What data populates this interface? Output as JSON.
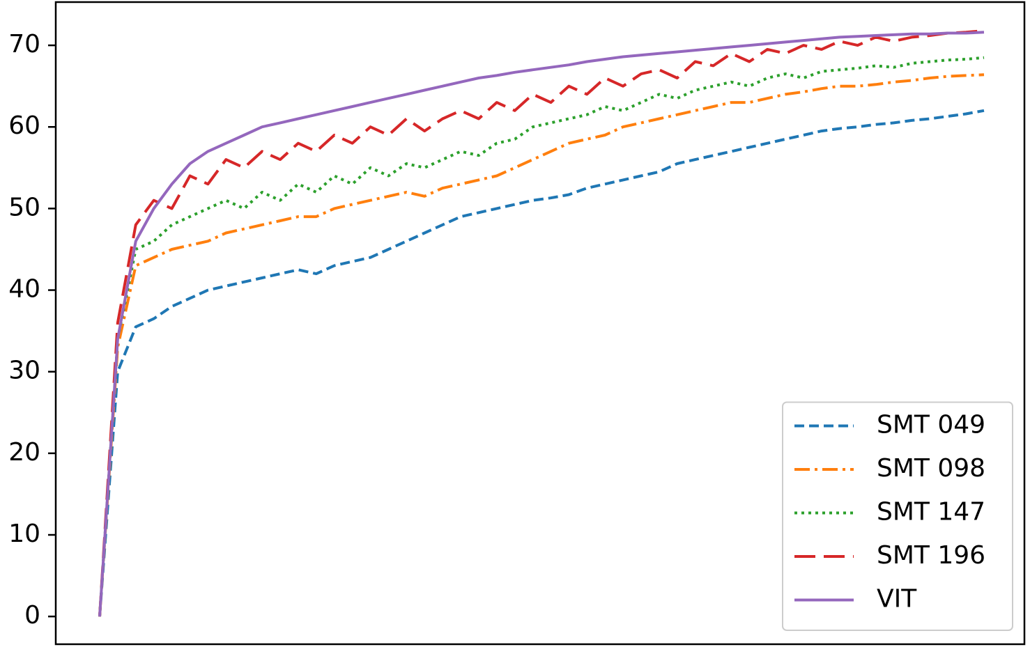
{
  "chart_data": {
    "type": "line",
    "ylim": [
      -3.4,
      75.3
    ],
    "yticks": [
      0,
      10,
      20,
      30,
      40,
      50,
      60,
      70
    ],
    "legend": "lower right",
    "series": [
      {
        "name": "SMT 049",
        "color": "#1f77b4",
        "linestyle": "dashed",
        "values": [
          0,
          30,
          35.5,
          36.5,
          38,
          39,
          40,
          40.5,
          41,
          41.5,
          42,
          42.5,
          42,
          43,
          43.5,
          44,
          45,
          46,
          47,
          48,
          49,
          49.5,
          50,
          50.5,
          51,
          51.3,
          51.7,
          52.5,
          53,
          53.5,
          54,
          54.5,
          55.5,
          56,
          56.5,
          57,
          57.5,
          58,
          58.5,
          59,
          59.5,
          59.8,
          60,
          60.3,
          60.5,
          60.8,
          61,
          61.3,
          61.6,
          62
        ]
      },
      {
        "name": "SMT 098",
        "color": "#ff7f0e",
        "linestyle": "dashdot",
        "values": [
          0,
          33,
          43,
          44,
          45,
          45.5,
          46,
          47,
          47.5,
          48,
          48.5,
          49,
          49,
          50,
          50.5,
          51,
          51.5,
          52,
          51.5,
          52.5,
          53,
          53.5,
          54,
          55,
          56,
          57,
          58,
          58.5,
          59,
          60,
          60.5,
          61,
          61.5,
          62,
          62.5,
          63,
          63,
          63.5,
          64,
          64.3,
          64.7,
          65,
          65,
          65.2,
          65.5,
          65.7,
          66,
          66.2,
          66.3,
          66.4
        ]
      },
      {
        "name": "SMT 147",
        "color": "#2ca02c",
        "linestyle": "dotted",
        "values": [
          0,
          34,
          45,
          46,
          48,
          49,
          50,
          51,
          50,
          52,
          51,
          53,
          52,
          54,
          53,
          55,
          54,
          55.5,
          55,
          56,
          57,
          56.5,
          58,
          58.5,
          60,
          60.5,
          61,
          61.5,
          62.5,
          62,
          63,
          64,
          63.5,
          64.5,
          65,
          65.5,
          65,
          66,
          66.5,
          66,
          66.8,
          67,
          67.2,
          67.5,
          67.3,
          67.8,
          68,
          68.2,
          68.3,
          68.5
        ]
      },
      {
        "name": "SMT 196",
        "color": "#d62728",
        "linestyle": "longdash",
        "values": [
          0,
          36,
          48,
          51,
          50,
          54,
          53,
          56,
          55,
          57,
          56,
          58,
          57,
          59,
          58,
          60,
          59,
          61,
          59.5,
          61,
          62,
          61,
          63,
          62,
          64,
          63,
          65,
          64,
          66,
          65,
          66.5,
          67,
          66,
          68,
          67.5,
          69,
          68,
          69.5,
          69,
          70,
          69.5,
          70.5,
          70,
          71,
          70.5,
          71,
          71.2,
          71.5,
          71.6,
          71.8
        ]
      },
      {
        "name": "VIT",
        "color": "#9467bd",
        "linestyle": "solid",
        "values": [
          0,
          34,
          46,
          50,
          53,
          55.5,
          57,
          58,
          59,
          60,
          60.5,
          61,
          61.5,
          62,
          62.5,
          63,
          63.5,
          64,
          64.5,
          65,
          65.5,
          66,
          66.3,
          66.7,
          67,
          67.3,
          67.6,
          68,
          68.3,
          68.6,
          68.8,
          69,
          69.2,
          69.4,
          69.6,
          69.8,
          70,
          70.2,
          70.4,
          70.6,
          70.8,
          71,
          71.1,
          71.2,
          71.3,
          71.4,
          71.4,
          71.5,
          71.5,
          71.6
        ]
      }
    ]
  }
}
